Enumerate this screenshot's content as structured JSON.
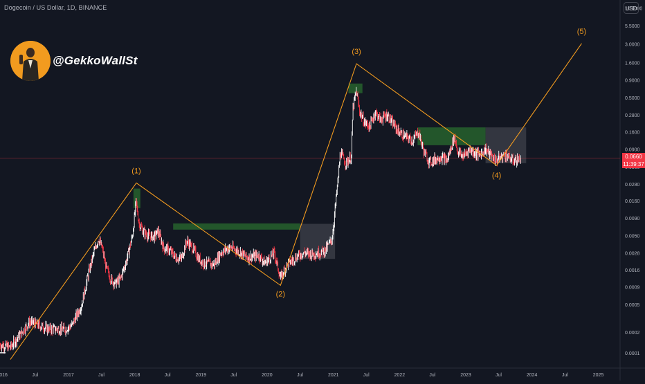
{
  "header": {
    "symbol_title": "Dogecoin / US Dollar, 1D, BINANCE",
    "currency_button": "USD"
  },
  "author": {
    "handle": "@GekkoWallSt"
  },
  "last_price": {
    "price": "0.0660",
    "countdown": "11:39:37"
  },
  "colors": {
    "background": "#131722",
    "candle_up": "#ffffff",
    "candle_down": "#f23645",
    "wave_line": "#f29b1f",
    "zone_green": "#245a2c",
    "zone_gray": "#3a3c45",
    "price_line": "#f23645"
  },
  "chart_data": {
    "type": "line",
    "title": "Dogecoin / US Dollar, 1D, BINANCE",
    "y_scale": "log",
    "ylim": [
      6e-05,
      13
    ],
    "xlim": [
      "2015-12-20",
      "2025-05-01"
    ],
    "y_ticks": [
      "10.0000",
      "5.5000",
      "3.0000",
      "1.6000",
      "0.9000",
      "0.5000",
      "0.2800",
      "0.1600",
      "0.0900",
      "0.0500",
      "0.0280",
      "0.0160",
      "0.0090",
      "0.0050",
      "0.0028",
      "0.0016",
      "0.0009",
      "0.0005",
      "0.0002",
      "0.0001"
    ],
    "x_ticks": [
      {
        "date": "2016-01-01",
        "label": "2016"
      },
      {
        "date": "2016-07-01",
        "label": "Jul"
      },
      {
        "date": "2017-01-01",
        "label": "2017"
      },
      {
        "date": "2017-07-01",
        "label": "Jul"
      },
      {
        "date": "2018-01-01",
        "label": "2018"
      },
      {
        "date": "2018-07-01",
        "label": "Jul"
      },
      {
        "date": "2019-01-01",
        "label": "2019"
      },
      {
        "date": "2019-07-01",
        "label": "Jul"
      },
      {
        "date": "2020-01-01",
        "label": "2020"
      },
      {
        "date": "2020-07-01",
        "label": "Jul"
      },
      {
        "date": "2021-01-01",
        "label": "2021"
      },
      {
        "date": "2021-07-01",
        "label": "Jul"
      },
      {
        "date": "2022-01-01",
        "label": "2022"
      },
      {
        "date": "2022-07-01",
        "label": "Jul"
      },
      {
        "date": "2023-01-01",
        "label": "2023"
      },
      {
        "date": "2023-07-01",
        "label": "Jul"
      },
      {
        "date": "2024-01-01",
        "label": "2024"
      },
      {
        "date": "2024-07-01",
        "label": "Jul"
      },
      {
        "date": "2025-01-01",
        "label": "2025"
      }
    ],
    "price_series": [
      [
        "2015-12-20",
        0.00013
      ],
      [
        "2016-02-15",
        0.00012
      ],
      [
        "2016-06-01",
        0.00028
      ],
      [
        "2016-09-15",
        0.00022
      ],
      [
        "2016-12-15",
        0.00022
      ],
      [
        "2017-01-20",
        0.00025
      ],
      [
        "2017-03-15",
        0.0005
      ],
      [
        "2017-04-15",
        0.0012
      ],
      [
        "2017-05-20",
        0.0028
      ],
      [
        "2017-06-15",
        0.0045
      ],
      [
        "2017-07-05",
        0.0033
      ],
      [
        "2017-07-25",
        0.0018
      ],
      [
        "2017-08-20",
        0.0012
      ],
      [
        "2017-09-15",
        0.001
      ],
      [
        "2017-10-15",
        0.0012
      ],
      [
        "2017-11-15",
        0.0021
      ],
      [
        "2017-12-20",
        0.005
      ],
      [
        "2018-01-08",
        0.0154
      ],
      [
        "2018-01-25",
        0.0075
      ],
      [
        "2018-02-15",
        0.0058
      ],
      [
        "2018-03-15",
        0.005
      ],
      [
        "2018-04-20",
        0.0048
      ],
      [
        "2018-05-10",
        0.0058
      ],
      [
        "2018-06-10",
        0.0033
      ],
      [
        "2018-07-10",
        0.0031
      ],
      [
        "2018-08-15",
        0.0024
      ],
      [
        "2018-09-15",
        0.0023
      ],
      [
        "2018-10-15",
        0.0042
      ],
      [
        "2018-11-20",
        0.0032
      ],
      [
        "2018-12-20",
        0.0023
      ],
      [
        "2019-01-15",
        0.002
      ],
      [
        "2019-03-15",
        0.0019
      ],
      [
        "2019-04-20",
        0.0028
      ],
      [
        "2019-06-10",
        0.0034
      ],
      [
        "2019-07-15",
        0.0031
      ],
      [
        "2019-09-15",
        0.0024
      ],
      [
        "2019-11-15",
        0.0026
      ],
      [
        "2019-12-20",
        0.002
      ],
      [
        "2020-02-10",
        0.0028
      ],
      [
        "2020-03-15",
        0.0012
      ],
      [
        "2020-04-20",
        0.0019
      ],
      [
        "2020-06-15",
        0.0025
      ],
      [
        "2020-07-20",
        0.0028
      ],
      [
        "2020-09-15",
        0.0027
      ],
      [
        "2020-11-15",
        0.003
      ],
      [
        "2020-12-25",
        0.0045
      ],
      [
        "2021-01-28",
        0.036
      ],
      [
        "2021-02-08",
        0.08
      ],
      [
        "2021-03-10",
        0.056
      ],
      [
        "2021-04-10",
        0.069
      ],
      [
        "2021-04-18",
        0.35
      ],
      [
        "2021-05-08",
        0.62
      ],
      [
        "2021-05-25",
        0.32
      ],
      [
        "2021-06-20",
        0.22
      ],
      [
        "2021-07-20",
        0.19
      ],
      [
        "2021-08-20",
        0.31
      ],
      [
        "2021-09-15",
        0.24
      ],
      [
        "2021-10-25",
        0.28
      ],
      [
        "2021-11-20",
        0.22
      ],
      [
        "2021-12-20",
        0.17
      ],
      [
        "2022-01-20",
        0.14
      ],
      [
        "2022-03-15",
        0.12
      ],
      [
        "2022-04-15",
        0.16
      ],
      [
        "2022-05-15",
        0.082
      ],
      [
        "2022-06-15",
        0.058
      ],
      [
        "2022-08-15",
        0.069
      ],
      [
        "2022-09-20",
        0.061
      ],
      [
        "2022-10-30",
        0.135
      ],
      [
        "2022-11-20",
        0.079
      ],
      [
        "2022-12-20",
        0.071
      ],
      [
        "2023-01-20",
        0.089
      ],
      [
        "2023-03-15",
        0.074
      ],
      [
        "2023-04-20",
        0.09
      ],
      [
        "2023-05-20",
        0.072
      ],
      [
        "2023-06-15",
        0.061
      ],
      [
        "2023-07-20",
        0.07
      ],
      [
        "2023-08-10",
        0.075
      ],
      [
        "2023-09-15",
        0.061
      ],
      [
        "2023-10-20",
        0.063
      ],
      [
        "2023-11-01",
        0.066
      ]
    ],
    "wave_path": [
      [
        "2016-02-15",
        8e-05
      ],
      [
        "2018-01-10",
        0.029
      ],
      [
        "2020-03-15",
        0.00095
      ],
      [
        "2021-05-08",
        1.55
      ],
      [
        "2023-06-20",
        0.052
      ],
      [
        "2024-10-01",
        3.05
      ]
    ],
    "wave_labels": [
      {
        "label": "(1)",
        "date": "2018-01-10",
        "price": 0.029
      },
      {
        "label": "(2)",
        "date": "2020-03-15",
        "price": 0.00095
      },
      {
        "label": "(3)",
        "date": "2021-05-08",
        "price": 1.55
      },
      {
        "label": "(4)",
        "date": "2023-06-20",
        "price": 0.052
      },
      {
        "label": "(5)",
        "date": "2024-10-01",
        "price": 3.05
      }
    ],
    "zones": [
      {
        "kind": "green",
        "from": "2017-12-25",
        "to": "2018-02-01",
        "low": 0.0125,
        "high": 0.024
      },
      {
        "kind": "green",
        "from": "2018-08-01",
        "to": "2020-07-01",
        "low": 0.0061,
        "high": 0.0075
      },
      {
        "kind": "gray",
        "from": "2020-07-01",
        "to": "2021-01-10",
        "low": 0.0023,
        "high": 0.0074
      },
      {
        "kind": "green",
        "from": "2021-03-25",
        "to": "2021-06-10",
        "low": 0.58,
        "high": 0.8
      },
      {
        "kind": "green",
        "from": "2022-04-10",
        "to": "2023-04-20",
        "low": 0.102,
        "high": 0.185
      },
      {
        "kind": "gray",
        "from": "2023-04-20",
        "to": "2023-11-30",
        "low": 0.056,
        "high": 0.185
      }
    ],
    "last_price": 0.066
  }
}
